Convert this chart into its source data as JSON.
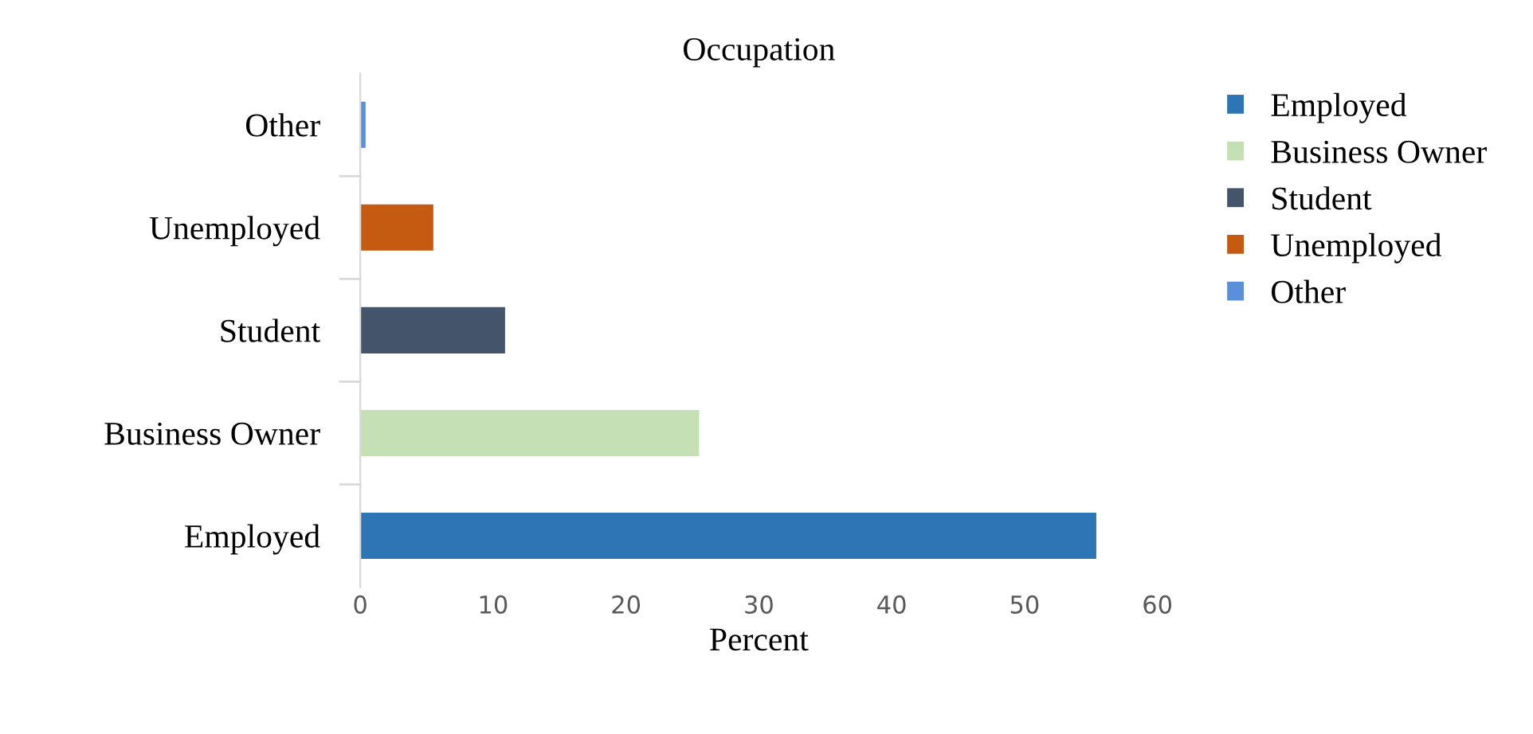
{
  "chart_data": {
    "type": "bar",
    "orientation": "horizontal",
    "title": "Occupation",
    "xlabel": "Percent",
    "categories": [
      "Other",
      "Unemployed",
      "Student",
      "Business Owner",
      "Employed"
    ],
    "series": [
      {
        "name": "Employed",
        "color": "#2e75b6",
        "values": [
          null,
          null,
          null,
          null,
          55.4
        ]
      },
      {
        "name": "Business Owner",
        "color": "#c5e0b4",
        "values": [
          null,
          null,
          null,
          25.5,
          null
        ]
      },
      {
        "name": "Student",
        "color": "#44546a",
        "values": [
          null,
          null,
          10.9,
          null,
          null
        ]
      },
      {
        "name": "Unemployed",
        "color": "#c55a11",
        "values": [
          null,
          5.5,
          null,
          null,
          null
        ]
      },
      {
        "name": "Other",
        "color": "#5b8fd9",
        "values": [
          0.4,
          null,
          null,
          null,
          null
        ]
      }
    ],
    "xlim": [
      0,
      60
    ],
    "xticks": [
      0,
      10,
      20,
      30,
      40,
      50,
      60
    ],
    "grid": false,
    "legend": "right"
  }
}
